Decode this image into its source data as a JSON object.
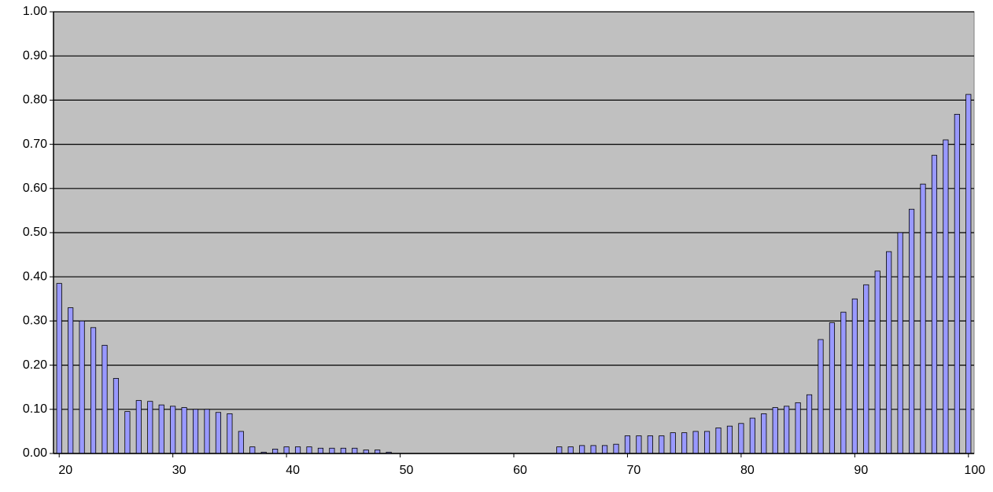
{
  "chart_data": {
    "type": "bar",
    "x": [
      20,
      21,
      22,
      23,
      24,
      25,
      26,
      27,
      28,
      29,
      30,
      31,
      32,
      33,
      34,
      35,
      36,
      37,
      38,
      39,
      40,
      41,
      42,
      43,
      44,
      45,
      46,
      47,
      48,
      49,
      50,
      51,
      52,
      53,
      54,
      55,
      56,
      57,
      58,
      59,
      60,
      61,
      62,
      63,
      64,
      65,
      66,
      67,
      68,
      69,
      70,
      71,
      72,
      73,
      74,
      75,
      76,
      77,
      78,
      79,
      80,
      81,
      82,
      83,
      84,
      85,
      86,
      87,
      88,
      89,
      90,
      91,
      92,
      93,
      94,
      95,
      96,
      97,
      98,
      99,
      100
    ],
    "values": [
      0.385,
      0.33,
      0.3,
      0.285,
      0.245,
      0.17,
      0.095,
      0.12,
      0.118,
      0.11,
      0.107,
      0.104,
      0.1,
      0.1,
      0.093,
      0.09,
      0.05,
      0.015,
      0.003,
      0.01,
      0.015,
      0.015,
      0.015,
      0.012,
      0.012,
      0.012,
      0.012,
      0.008,
      0.008,
      0.003,
      0,
      0,
      0,
      0,
      0,
      0,
      0,
      0,
      0,
      0,
      0,
      0,
      0,
      0,
      0.015,
      0.015,
      0.018,
      0.018,
      0.018,
      0.021,
      0.04,
      0.04,
      0.04,
      0.04,
      0.047,
      0.047,
      0.05,
      0.05,
      0.058,
      0.062,
      0.068,
      0.08,
      0.09,
      0.104,
      0.107,
      0.115,
      0.133,
      0.258,
      0.296,
      0.32,
      0.35,
      0.382,
      0.413,
      0.457,
      0.5,
      0.553,
      0.61,
      0.675,
      0.71,
      0.768,
      0.813
    ],
    "color": "#9999ff",
    "xlim": [
      19.5,
      100.5
    ],
    "xticks": [
      20,
      30,
      40,
      50,
      60,
      70,
      80,
      90,
      100
    ],
    "ylim": [
      0,
      1
    ],
    "yticks": [
      {
        "value": 0,
        "label": "0.00"
      },
      {
        "value": 0.1,
        "label": "0.10"
      },
      {
        "value": 0.2,
        "label": "0.20"
      },
      {
        "value": 0.3,
        "label": "0.30"
      },
      {
        "value": 0.4,
        "label": "0.40"
      },
      {
        "value": 0.5,
        "label": "0.50"
      },
      {
        "value": 0.6,
        "label": "0.60"
      },
      {
        "value": 0.7,
        "label": "0.70"
      },
      {
        "value": 0.8,
        "label": "0.80"
      },
      {
        "value": 0.9,
        "label": "0.90"
      },
      {
        "value": 1,
        "label": "1.00"
      }
    ],
    "grid": true
  }
}
